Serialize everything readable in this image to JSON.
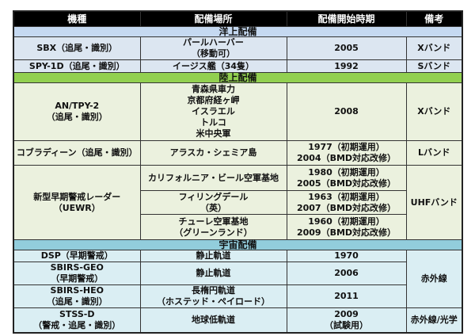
{
  "headers": [
    "機種",
    "配備場所",
    "配備開始時期",
    "備考"
  ],
  "ocean": {
    "title": "洋上配備",
    "rows": [
      {
        "model": [
          "SBX（追尾・識別）"
        ],
        "location": [
          "パールハーバー",
          "（移動可）"
        ],
        "start": [
          "2005"
        ],
        "note": "Xバンド"
      },
      {
        "model": [
          "SPY-1D（追尾・識別）"
        ],
        "location": [
          "イージス艦（34隻）"
        ],
        "start": [
          "1992"
        ],
        "note": "Sバンド"
      }
    ]
  },
  "land": {
    "title": "陸上配備",
    "rows": [
      {
        "model": [
          "AN/TPY-2",
          "（追尾・識別）"
        ],
        "location": [
          "青森県車力",
          "京都府経ヶ岬",
          "イスラエル",
          "トルコ",
          "米中央軍"
        ],
        "start": [
          "2008"
        ],
        "note": "Xバンド"
      },
      {
        "model": [
          "コブラディーン（追尾・識別）"
        ],
        "location": [
          "アラスカ・シェミア島"
        ],
        "start": [
          "1977（初期運用）",
          "2004（BMD対応改修）"
        ],
        "note": "Lバンド"
      }
    ],
    "uewr": {
      "model": [
        "新型早期警戒レーダー",
        "（UEWR）"
      ],
      "note": "UHFバンド",
      "sites": [
        {
          "location": [
            "カリフォルニア・ビール空軍基地"
          ],
          "start": [
            "1980（初期運用）",
            "2005（BMD対応改修）"
          ]
        },
        {
          "location": [
            "フィリングデール",
            "（英）"
          ],
          "start": [
            "1963（初期運用）",
            "2007（BMD対応改修）"
          ]
        },
        {
          "location": [
            "チューレ空軍基地",
            "（グリーンランド）"
          ],
          "start": [
            "1960（初期運用）",
            "2009（BMD対応改修）"
          ]
        }
      ]
    }
  },
  "space": {
    "title": "宇宙配備",
    "shared_note": "赤外線",
    "rows": [
      {
        "model": [
          "DSP（早期警戒）"
        ],
        "location": [
          "静止軌道"
        ],
        "start": [
          "1970"
        ]
      },
      {
        "model": [
          "SBIRS-GEO",
          "（早期警戒）"
        ],
        "location": [
          "静止軌道"
        ],
        "start": [
          "2006"
        ]
      },
      {
        "model": [
          "SBIRS-HEO",
          "（追尾・識別）"
        ],
        "location": [
          "長楕円軌道",
          "（ホステッド・ペイロード）"
        ],
        "start": [
          "2011"
        ]
      },
      {
        "model": [
          "STSS-D",
          "（警戒・追尾・識別）"
        ],
        "location": [
          "地球低軌道"
        ],
        "start": [
          "2009",
          "（試験用）"
        ],
        "note": "赤外線/光学"
      }
    ]
  }
}
